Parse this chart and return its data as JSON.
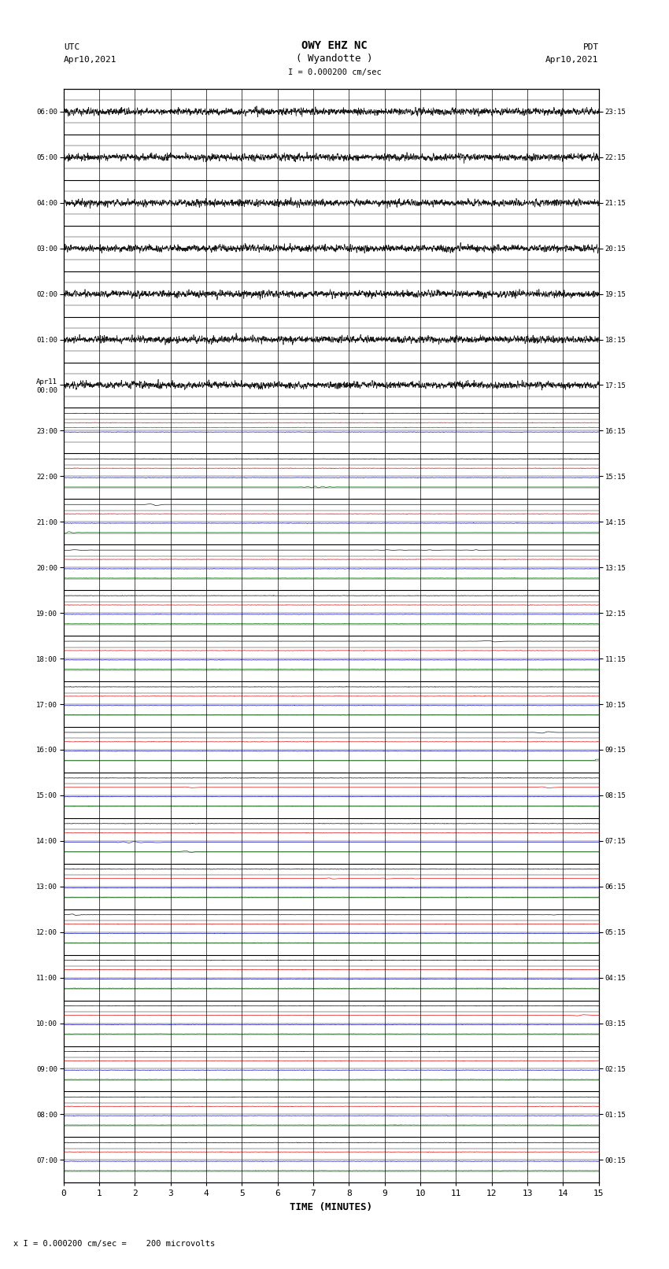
{
  "title_line1": "OWY EHZ NC",
  "title_line2": "( Wyandotte )",
  "title_scale": "I = 0.000200 cm/sec",
  "left_label_line1": "UTC",
  "left_label_line2": "Apr10,2021",
  "right_label_line1": "PDT",
  "right_label_line2": "Apr10,2021",
  "footer_label": "x I = 0.000200 cm/sec =    200 microvolts",
  "xlabel": "TIME (MINUTES)",
  "left_times": [
    "07:00",
    "08:00",
    "09:00",
    "10:00",
    "11:00",
    "12:00",
    "13:00",
    "14:00",
    "15:00",
    "16:00",
    "17:00",
    "18:00",
    "19:00",
    "20:00",
    "21:00",
    "22:00",
    "23:00",
    "Apr11\n00:00",
    "01:00",
    "02:00",
    "03:00",
    "04:00",
    "05:00",
    "06:00"
  ],
  "right_times": [
    "00:15",
    "01:15",
    "02:15",
    "03:15",
    "04:15",
    "05:15",
    "06:15",
    "07:15",
    "08:15",
    "09:15",
    "10:15",
    "11:15",
    "12:15",
    "13:15",
    "14:15",
    "15:15",
    "16:15",
    "17:15",
    "18:15",
    "19:15",
    "20:15",
    "21:15",
    "22:15",
    "23:15"
  ],
  "n_rows": 24,
  "n_subrows": 4,
  "x_min": 0,
  "x_max": 15,
  "bg_color": "#ffffff",
  "grid_color": "#000000",
  "figwidth": 8.5,
  "figheight": 16.13,
  "dpi": 100
}
